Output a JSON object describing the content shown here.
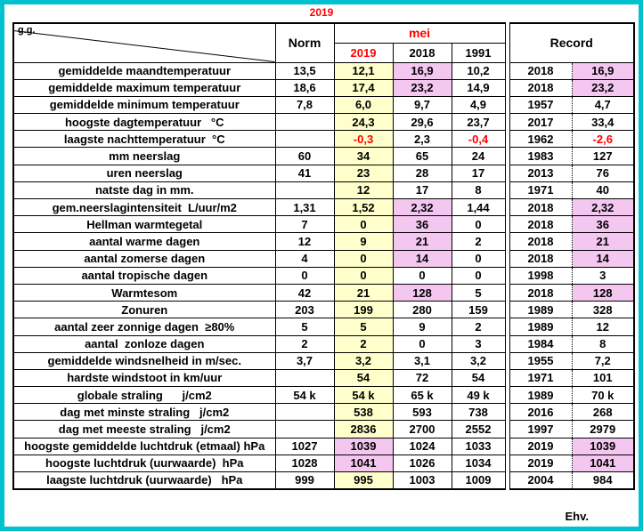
{
  "colors": {
    "frame_cyan": "#00C3CF",
    "accent_red": "#FF0000",
    "column_yellow": "#FFFFCC",
    "highlight_pink": "#F4C7F0"
  },
  "chart_data": {
    "type": "table",
    "title": "2019",
    "footer_note": "Ehv.",
    "header": {
      "corner_label": "g.g.",
      "norm": "Norm",
      "month_group": "mei",
      "year_columns": [
        "2019",
        "2018",
        "1991"
      ],
      "record_group": "Record"
    },
    "column_semantics": [
      "label",
      "Norm",
      "mei 2019",
      "mei 2018",
      "mei 1991",
      "Record jaar",
      "Record waarde"
    ],
    "rows": [
      {
        "label": "gemiddelde maandtemperatuur",
        "values": [
          "13,5",
          "12,1",
          "16,9",
          "10,2",
          "2018",
          "16,9"
        ],
        "pink": [
          2,
          5
        ]
      },
      {
        "label": "gemiddelde maximum temperatuur",
        "values": [
          "18,6",
          "17,4",
          "23,2",
          "14,9",
          "2018",
          "23,2"
        ],
        "pink": [
          2,
          5
        ]
      },
      {
        "label": "gemiddelde minimum temperatuur",
        "values": [
          "7,8",
          "6,0",
          "9,7",
          "4,9",
          "1957",
          "4,7"
        ]
      },
      {
        "label": "hoogste dagtemperatuur   °C",
        "values": [
          "",
          "24,3",
          "29,6",
          "23,7",
          "2017",
          "33,4"
        ]
      },
      {
        "label": "laagste nachttemperatuur  °C",
        "values": [
          "",
          "-0,3",
          "2,3",
          "-0,4",
          "1962",
          "-2,6"
        ],
        "red": [
          1,
          3,
          5
        ]
      },
      {
        "label": "mm neerslag",
        "values": [
          "60",
          "34",
          "65",
          "24",
          "1983",
          "127"
        ]
      },
      {
        "label": "uren neerslag",
        "values": [
          "41",
          "23",
          "28",
          "17",
          "2013",
          "76"
        ]
      },
      {
        "label": "natste dag in mm.",
        "values": [
          "",
          "12",
          "17",
          "8",
          "1971",
          "40"
        ]
      },
      {
        "label": "gem.neerslagintensiteit  L/uur/m2",
        "values": [
          "1,31",
          "1,52",
          "2,32",
          "1,44",
          "2018",
          "2,32"
        ],
        "pink": [
          2,
          5
        ]
      },
      {
        "label": "Hellman warmtegetal",
        "values": [
          "7",
          "0",
          "36",
          "0",
          "2018",
          "36"
        ],
        "pink": [
          2,
          5
        ]
      },
      {
        "label": "aantal warme dagen",
        "values": [
          "12",
          "9",
          "21",
          "2",
          "2018",
          "21"
        ],
        "pink": [
          2,
          5
        ]
      },
      {
        "label": "aantal zomerse dagen",
        "values": [
          "4",
          "0",
          "14",
          "0",
          "2018",
          "14"
        ],
        "pink": [
          2,
          5
        ]
      },
      {
        "label": "aantal tropische dagen",
        "values": [
          "0",
          "0",
          "0",
          "0",
          "1998",
          "3"
        ]
      },
      {
        "label": "Warmtesom",
        "values": [
          "42",
          "21",
          "128",
          "5",
          "2018",
          "128"
        ],
        "pink": [
          2,
          5
        ]
      },
      {
        "label": "Zonuren",
        "values": [
          "203",
          "199",
          "280",
          "159",
          "1989",
          "328"
        ]
      },
      {
        "label": "aantal zeer zonnige dagen  ≥80%",
        "values": [
          "5",
          "5",
          "9",
          "2",
          "1989",
          "12"
        ]
      },
      {
        "label": "aantal  zonloze dagen",
        "values": [
          "2",
          "2",
          "0",
          "3",
          "1984",
          "8"
        ]
      },
      {
        "label": "gemiddelde windsnelheid in m/sec.",
        "values": [
          "3,7",
          "3,2",
          "3,1",
          "3,2",
          "1955",
          "7,2"
        ]
      },
      {
        "label": "hardste windstoot in km/uur",
        "values": [
          "",
          "54",
          "72",
          "54",
          "1971",
          "101"
        ]
      },
      {
        "label": "globale straling      j/cm2",
        "values": [
          "54 k",
          "54 k",
          "65 k",
          "49 k",
          "1989",
          "70 k"
        ]
      },
      {
        "label": "dag met minste straling   j/cm2",
        "values": [
          "",
          "538",
          "593",
          "738",
          "2016",
          "268"
        ]
      },
      {
        "label": "dag met meeste straling   j/cm2",
        "values": [
          "",
          "2836",
          "2700",
          "2552",
          "1997",
          "2979"
        ]
      },
      {
        "label": "hoogste gemiddelde luchtdruk (etmaal) hPa",
        "values": [
          "1027",
          "1039",
          "1024",
          "1033",
          "2019",
          "1039"
        ],
        "pink": [
          1,
          5
        ]
      },
      {
        "label": "hoogste luchtdruk (uurwaarde)  hPa",
        "values": [
          "1028",
          "1041",
          "1026",
          "1034",
          "2019",
          "1041"
        ],
        "pink": [
          1,
          5
        ]
      },
      {
        "label": "laagste luchtdruk (uurwaarde)   hPa",
        "values": [
          "999",
          "995",
          "1003",
          "1009",
          "2004",
          "984"
        ]
      }
    ]
  }
}
